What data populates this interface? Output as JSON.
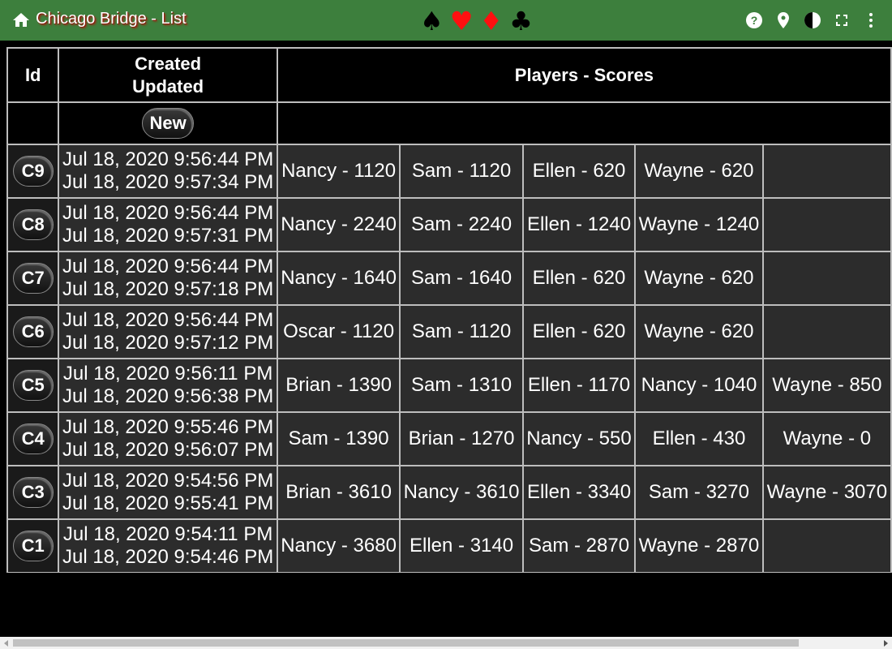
{
  "app_bar": {
    "title": "Chicago Bridge - List",
    "home_icon": "home-icon",
    "suits": [
      "♠",
      "♥",
      "♦",
      "♣"
    ],
    "actions": [
      "help-icon",
      "location-pin-icon",
      "theme-contrast-icon",
      "fullscreen-icon",
      "more-vert-icon"
    ],
    "background": "#3d7f3d"
  },
  "table": {
    "headers": {
      "id": "Id",
      "created": "Created",
      "updated": "Updated",
      "players": "Players - Scores"
    },
    "new_button": "New",
    "rows": [
      {
        "id": "C9",
        "created": "Jul 18, 2020 9:56:44 PM",
        "updated": "Jul 18, 2020 9:57:34 PM",
        "players": [
          "Nancy - 1120",
          "Sam - 1120",
          "Ellen - 620",
          "Wayne - 620",
          ""
        ]
      },
      {
        "id": "C8",
        "created": "Jul 18, 2020 9:56:44 PM",
        "updated": "Jul 18, 2020 9:57:31 PM",
        "players": [
          "Nancy - 2240",
          "Sam - 2240",
          "Ellen - 1240",
          "Wayne - 1240",
          ""
        ]
      },
      {
        "id": "C7",
        "created": "Jul 18, 2020 9:56:44 PM",
        "updated": "Jul 18, 2020 9:57:18 PM",
        "players": [
          "Nancy - 1640",
          "Sam - 1640",
          "Ellen - 620",
          "Wayne - 620",
          ""
        ]
      },
      {
        "id": "C6",
        "created": "Jul 18, 2020 9:56:44 PM",
        "updated": "Jul 18, 2020 9:57:12 PM",
        "players": [
          "Oscar - 1120",
          "Sam - 1120",
          "Ellen - 620",
          "Wayne - 620",
          ""
        ]
      },
      {
        "id": "C5",
        "created": "Jul 18, 2020 9:56:11 PM",
        "updated": "Jul 18, 2020 9:56:38 PM",
        "players": [
          "Brian - 1390",
          "Sam - 1310",
          "Ellen - 1170",
          "Nancy - 1040",
          "Wayne - 850"
        ]
      },
      {
        "id": "C4",
        "created": "Jul 18, 2020 9:55:46 PM",
        "updated": "Jul 18, 2020 9:56:07 PM",
        "players": [
          "Sam - 1390",
          "Brian - 1270",
          "Nancy - 550",
          "Ellen - 430",
          "Wayne - 0"
        ]
      },
      {
        "id": "C3",
        "created": "Jul 18, 2020 9:54:56 PM",
        "updated": "Jul 18, 2020 9:55:41 PM",
        "players": [
          "Brian - 3610",
          "Nancy - 3610",
          "Ellen - 3340",
          "Sam - 3270",
          "Wayne - 3070"
        ]
      },
      {
        "id": "C1",
        "created": "Jul 18, 2020 9:54:11 PM",
        "updated": "Jul 18, 2020 9:54:46 PM",
        "players": [
          "Nancy - 3680",
          "Ellen - 3140",
          "Sam - 2870",
          "Wayne - 2870",
          ""
        ]
      }
    ]
  }
}
